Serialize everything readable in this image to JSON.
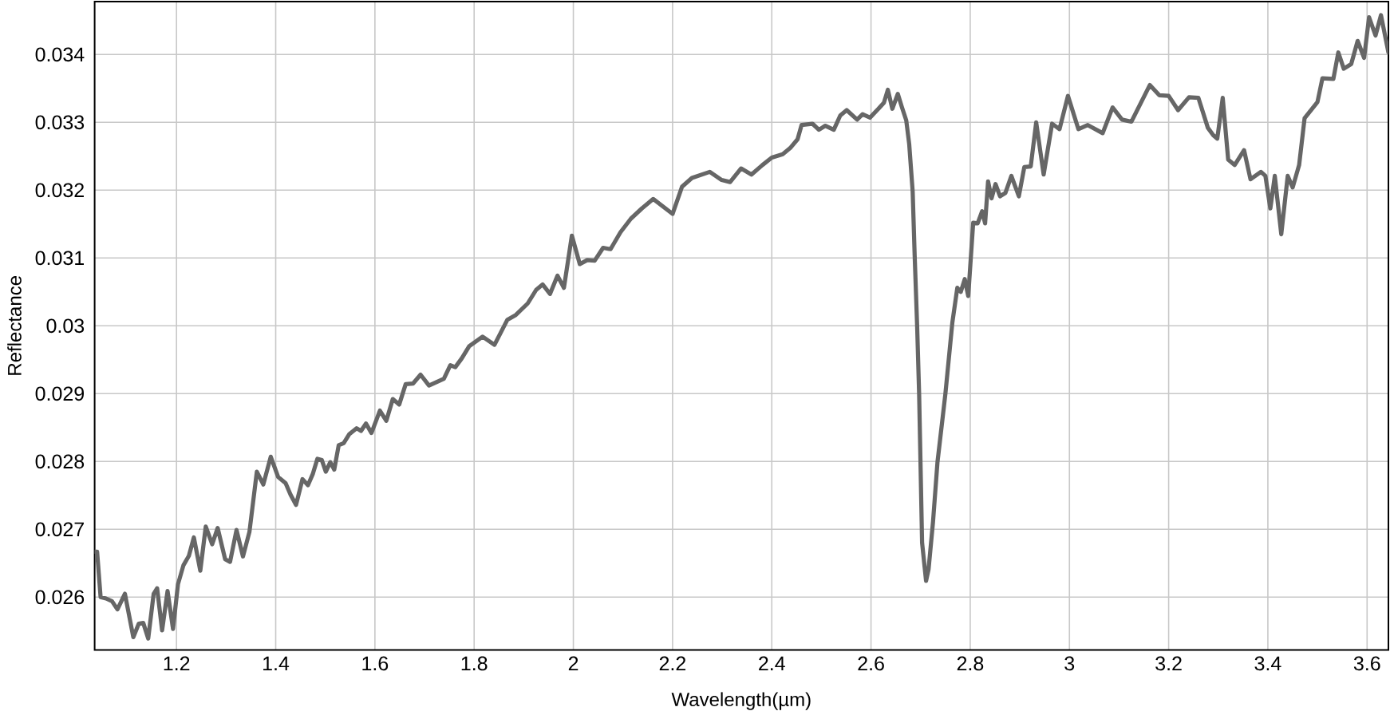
{
  "chart_data": {
    "type": "line",
    "xlabel": "Wavelength(µm)",
    "ylabel": "Reflectance",
    "xlim": [
      1.035,
      3.643
    ],
    "ylim": [
      0.02522,
      0.03478
    ],
    "xticks": [
      1.2,
      1.4,
      1.6,
      1.8,
      2,
      2.2,
      2.4,
      2.6,
      2.8,
      3,
      3.2,
      3.4,
      3.6
    ],
    "yticks": [
      0.026,
      0.027,
      0.028,
      0.029,
      0.03,
      0.031,
      0.032,
      0.033,
      0.034
    ],
    "grid": true,
    "marker": "none",
    "line_style": "solid",
    "x": [
      1.036,
      1.04,
      1.047,
      1.058,
      1.07,
      1.081,
      1.096,
      1.113,
      1.124,
      1.133,
      1.143,
      1.154,
      1.161,
      1.171,
      1.182,
      1.193,
      1.203,
      1.214,
      1.225,
      1.235,
      1.248,
      1.259,
      1.272,
      1.283,
      1.298,
      1.308,
      1.321,
      1.334,
      1.347,
      1.362,
      1.375,
      1.39,
      1.405,
      1.42,
      1.43,
      1.441,
      1.454,
      1.465,
      1.475,
      1.484,
      1.493,
      1.501,
      1.51,
      1.518,
      1.527,
      1.537,
      1.548,
      1.563,
      1.572,
      1.582,
      1.593,
      1.61,
      1.623,
      1.636,
      1.649,
      1.662,
      1.677,
      1.692,
      1.709,
      1.739,
      1.752,
      1.762,
      1.775,
      1.79,
      1.817,
      1.841,
      1.867,
      1.884,
      1.908,
      1.925,
      1.938,
      1.953,
      1.968,
      1.981,
      1.997,
      2.013,
      2.028,
      2.043,
      2.06,
      2.075,
      2.095,
      2.116,
      2.138,
      2.161,
      2.2,
      2.219,
      2.239,
      2.275,
      2.299,
      2.316,
      2.338,
      2.359,
      2.381,
      2.4,
      2.422,
      2.437,
      2.452,
      2.46,
      2.482,
      2.495,
      2.508,
      2.525,
      2.538,
      2.551,
      2.572,
      2.583,
      2.598,
      2.615,
      2.626,
      2.634,
      2.643,
      2.654,
      2.662,
      2.671,
      2.677,
      2.684,
      2.688,
      2.693,
      2.697,
      2.703,
      2.711,
      2.716,
      2.725,
      2.734,
      2.75,
      2.764,
      2.774,
      2.781,
      2.789,
      2.796,
      2.806,
      2.815,
      2.824,
      2.83,
      2.836,
      2.843,
      2.851,
      2.86,
      2.871,
      2.883,
      2.898,
      2.909,
      2.922,
      2.933,
      2.948,
      2.965,
      2.98,
      2.997,
      3.018,
      3.037,
      3.067,
      3.087,
      3.106,
      3.125,
      3.162,
      3.181,
      3.2,
      3.219,
      3.241,
      3.26,
      3.279,
      3.29,
      3.298,
      3.309,
      3.32,
      3.333,
      3.352,
      3.365,
      3.386,
      3.395,
      3.405,
      3.414,
      3.427,
      3.44,
      3.45,
      3.463,
      3.474,
      3.5,
      3.51,
      3.532,
      3.542,
      3.553,
      3.568,
      3.581,
      3.594,
      3.604,
      3.617,
      3.628,
      3.643
    ],
    "series": [
      {
        "color": "#666666",
        "values": [
          0.02667,
          0.02667,
          0.026,
          0.02598,
          0.02594,
          0.02582,
          0.02605,
          0.02541,
          0.02561,
          0.02562,
          0.02539,
          0.02605,
          0.02613,
          0.02551,
          0.02609,
          0.02553,
          0.02619,
          0.02647,
          0.02661,
          0.02688,
          0.02639,
          0.02704,
          0.02678,
          0.02702,
          0.02656,
          0.02652,
          0.02699,
          0.0266,
          0.02696,
          0.02785,
          0.02766,
          0.02807,
          0.02777,
          0.02768,
          0.02751,
          0.02736,
          0.02774,
          0.02765,
          0.02782,
          0.02804,
          0.02802,
          0.02785,
          0.02799,
          0.02788,
          0.02824,
          0.02827,
          0.0284,
          0.02849,
          0.02845,
          0.02856,
          0.02842,
          0.02875,
          0.0286,
          0.02892,
          0.02884,
          0.02914,
          0.02915,
          0.02928,
          0.02912,
          0.02922,
          0.02942,
          0.02939,
          0.02952,
          0.0297,
          0.02984,
          0.02972,
          0.03009,
          0.03016,
          0.03033,
          0.03053,
          0.03061,
          0.03047,
          0.03074,
          0.03056,
          0.03133,
          0.03091,
          0.03097,
          0.03096,
          0.03115,
          0.03113,
          0.03138,
          0.03158,
          0.03173,
          0.03187,
          0.03165,
          0.03205,
          0.03218,
          0.03227,
          0.03215,
          0.03212,
          0.03232,
          0.03223,
          0.03237,
          0.03248,
          0.03253,
          0.03262,
          0.03275,
          0.03296,
          0.03298,
          0.03289,
          0.03295,
          0.03289,
          0.0331,
          0.03318,
          0.03304,
          0.03312,
          0.03307,
          0.0332,
          0.03329,
          0.03348,
          0.0332,
          0.03342,
          0.03323,
          0.03303,
          0.03268,
          0.03198,
          0.03104,
          0.03,
          0.029,
          0.0268,
          0.02624,
          0.02641,
          0.02711,
          0.02799,
          0.029,
          0.03005,
          0.03056,
          0.0305,
          0.03069,
          0.03044,
          0.03152,
          0.03151,
          0.03169,
          0.03151,
          0.03213,
          0.03188,
          0.03209,
          0.03191,
          0.03196,
          0.03221,
          0.03191,
          0.03234,
          0.03235,
          0.033,
          0.03223,
          0.03298,
          0.0329,
          0.03339,
          0.0329,
          0.03296,
          0.03284,
          0.03322,
          0.03304,
          0.03301,
          0.03355,
          0.0334,
          0.03339,
          0.03318,
          0.03337,
          0.03336,
          0.03292,
          0.03281,
          0.03276,
          0.03336,
          0.03245,
          0.03237,
          0.03259,
          0.03216,
          0.03227,
          0.03221,
          0.03173,
          0.03221,
          0.03135,
          0.03221,
          0.03204,
          0.03237,
          0.03306,
          0.0333,
          0.03365,
          0.03364,
          0.03403,
          0.03379,
          0.03386,
          0.0342,
          0.03395,
          0.03455,
          0.03428,
          0.03458,
          0.03403
        ]
      }
    ]
  }
}
